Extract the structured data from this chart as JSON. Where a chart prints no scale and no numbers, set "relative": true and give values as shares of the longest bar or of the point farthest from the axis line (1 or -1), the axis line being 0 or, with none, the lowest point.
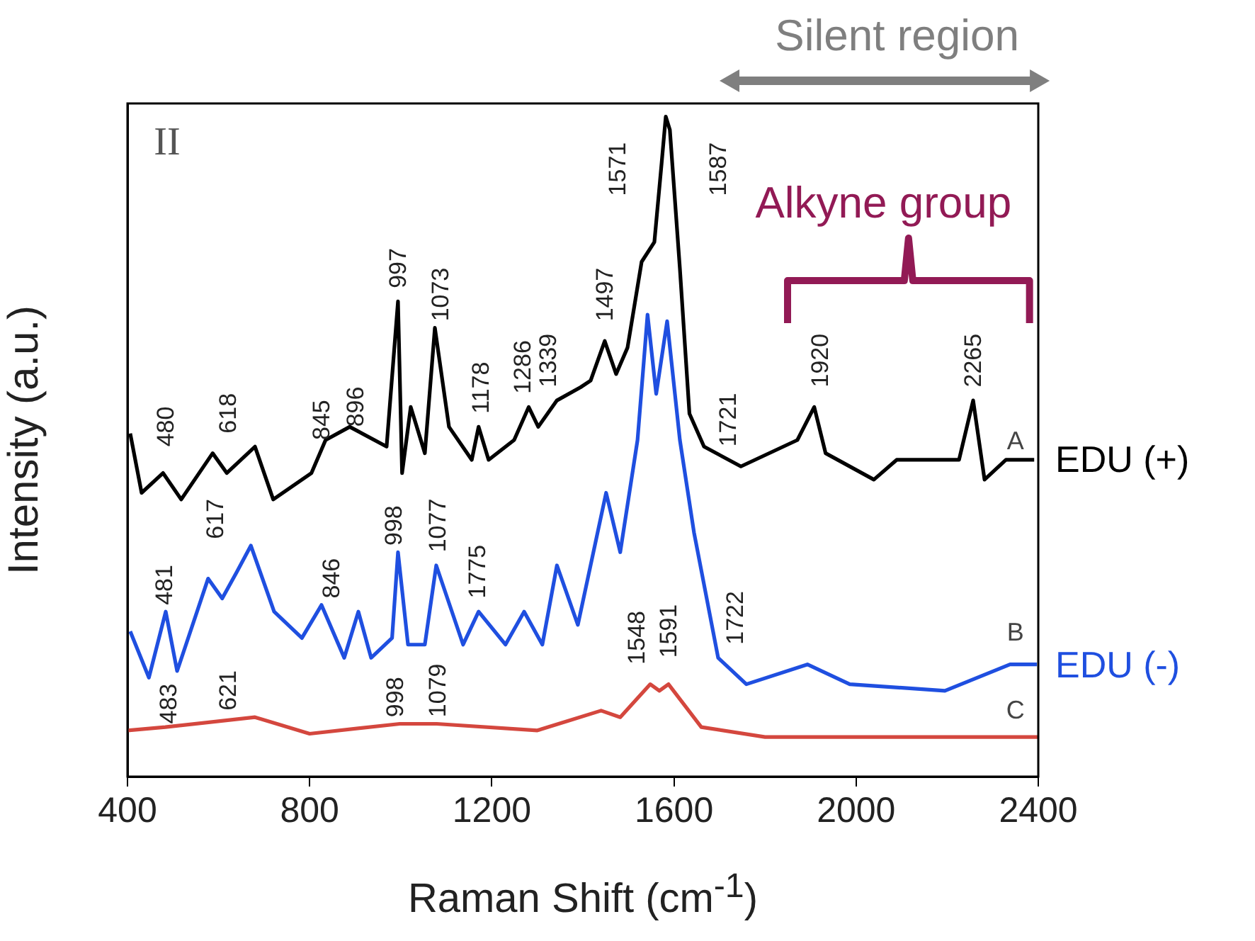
{
  "chart_data": {
    "type": "line",
    "relative": true,
    "xlabel": "Raman Shift (cm$^{-1}$)",
    "ylabel": "Intensity (a.u.)",
    "xlim": [
      400,
      2400
    ],
    "xticks": [
      400,
      800,
      1200,
      1600,
      2000,
      2400
    ],
    "grid": false,
    "legend": false,
    "marker": "none",
    "line_style": "solid",
    "series": [
      {
        "name": "EDU (+)",
        "color": "#000000",
        "x": [
          406,
          431,
          478,
          518,
          587,
          618,
          680,
          720,
          804,
          835,
          888,
          969,
          994,
          1003,
          1022,
          1053,
          1075,
          1106,
          1156,
          1171,
          1193,
          1249,
          1281,
          1302,
          1343,
          1395,
          1417,
          1448,
          1473,
          1498,
          1529,
          1557,
          1573,
          1582,
          1591,
          1613,
          1634,
          1666,
          1747,
          1871,
          1908,
          1933,
          2039,
          2089,
          2226,
          2257,
          2282,
          2329,
          2391
        ],
        "values": [
          0.52,
          0.43,
          0.46,
          0.42,
          0.49,
          0.46,
          0.5,
          0.42,
          0.46,
          0.51,
          0.53,
          0.5,
          0.72,
          0.46,
          0.56,
          0.49,
          0.68,
          0.53,
          0.48,
          0.53,
          0.48,
          0.51,
          0.56,
          0.53,
          0.57,
          0.59,
          0.6,
          0.66,
          0.61,
          0.65,
          0.78,
          0.81,
          0.93,
          1.0,
          0.98,
          0.77,
          0.55,
          0.5,
          0.47,
          0.51,
          0.56,
          0.49,
          0.45,
          0.48,
          0.48,
          0.57,
          0.45,
          0.48,
          0.48
        ]
      },
      {
        "name": "EDU (-)",
        "color": "#1f4fe0",
        "x": [
          406,
          447,
          484,
          509,
          577,
          608,
          640,
          671,
          722,
          783,
          826,
          876,
          907,
          935,
          981,
          994,
          1016,
          1053,
          1078,
          1137,
          1171,
          1230,
          1271,
          1311,
          1343,
          1389,
          1451,
          1482,
          1520,
          1542,
          1561,
          1585,
          1613,
          1644,
          1697,
          1759,
          1893,
          1986,
          2195,
          2338,
          2397
        ],
        "values": [
          0.22,
          0.15,
          0.25,
          0.16,
          0.3,
          0.27,
          0.31,
          0.35,
          0.25,
          0.21,
          0.26,
          0.18,
          0.25,
          0.18,
          0.21,
          0.34,
          0.2,
          0.2,
          0.32,
          0.2,
          0.25,
          0.2,
          0.25,
          0.2,
          0.32,
          0.23,
          0.43,
          0.34,
          0.51,
          0.7,
          0.58,
          0.69,
          0.51,
          0.37,
          0.18,
          0.14,
          0.17,
          0.14,
          0.13,
          0.17,
          0.17
        ]
      },
      {
        "color": "#d4473e",
        "x": [
          400,
          483,
          680,
          800,
          998,
          1079,
          1300,
          1440,
          1482,
          1548,
          1568,
          1588,
          1660,
          1800,
          2400
        ],
        "values": [
          0.07,
          0.075,
          0.09,
          0.065,
          0.08,
          0.08,
          0.07,
          0.1,
          0.09,
          0.14,
          0.13,
          0.14,
          0.075,
          0.06,
          0.06
        ]
      }
    ],
    "annotations": [
      "II",
      "Silent region",
      "Alkyne group",
      "A",
      "B",
      "C",
      "480",
      "618",
      "845",
      "896",
      "997",
      "1073",
      "1178",
      "1286",
      "1339",
      "1497",
      "1571",
      "1587",
      "1721",
      "1920",
      "2265",
      "481",
      "617",
      "846",
      "998",
      "1077",
      "1775",
      "1722",
      "483",
      "621",
      "998",
      "1079",
      "1548",
      "1591"
    ]
  }
}
